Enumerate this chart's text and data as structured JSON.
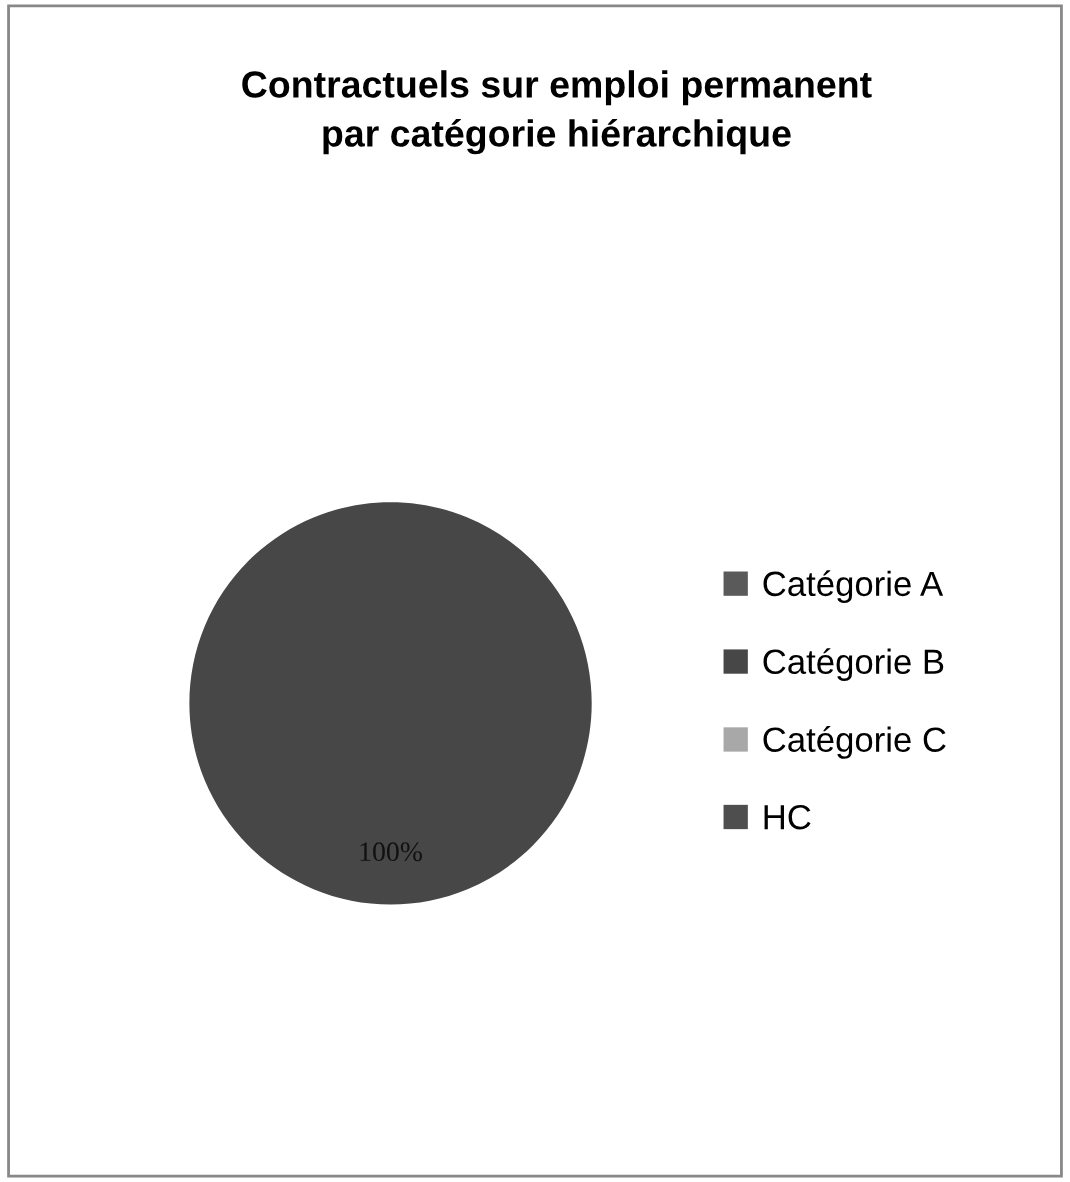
{
  "chart_data": {
    "type": "pie",
    "title": "Contractuels sur emploi permanent\npar catégorie hiérarchique",
    "categories": [
      "Catégorie A",
      "Catégorie B",
      "Catégorie C",
      "HC"
    ],
    "values": [
      0,
      100,
      0,
      0
    ],
    "value_labels": [
      null,
      "100%",
      null,
      null
    ],
    "colors": [
      "#5a5a5a",
      "#474747",
      "#a8a8a8",
      "#4e4e4e"
    ],
    "legend": "right"
  }
}
